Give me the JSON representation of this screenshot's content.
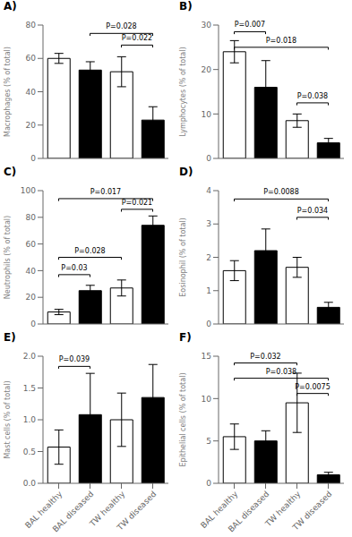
{
  "chart_data": [
    {
      "type": "bar",
      "title": "A)",
      "ylabel": "Macrophages (% of total)",
      "categories": [
        "BAL healthy",
        "BAL diseased",
        "TW healthy",
        "TW diseased"
      ],
      "values": [
        60,
        53,
        52,
        23
      ],
      "errors": [
        3,
        5,
        9,
        8
      ],
      "colors": [
        "white",
        "black",
        "white",
        "black"
      ],
      "ylim": [
        0,
        80
      ],
      "yticks": [
        0,
        20,
        40,
        60,
        80
      ],
      "grid": false,
      "tick_labels": "y",
      "annotations": [
        {
          "text": "P=0.028",
          "from": "BAL diseased",
          "to": "TW diseased",
          "y": 75
        },
        {
          "text": "P=0.022",
          "from": "TW healthy",
          "to": "TW diseased",
          "y": 68
        }
      ]
    },
    {
      "type": "bar",
      "title": "B)",
      "ylabel": "Lymphocytes (% of total)",
      "categories": [
        "BAL healthy",
        "BAL diseased",
        "TW healthy",
        "TW diseased"
      ],
      "values": [
        24,
        16,
        8.5,
        3.5
      ],
      "errors": [
        2.5,
        6,
        1.5,
        1.0
      ],
      "colors": [
        "white",
        "black",
        "white",
        "black"
      ],
      "ylim": [
        0,
        30
      ],
      "yticks": [
        0,
        10,
        20,
        30
      ],
      "grid": false,
      "tick_labels": "y",
      "annotations": [
        {
          "text": "P=0.007",
          "from": "BAL healthy",
          "to": "BAL diseased",
          "y": 28.5
        },
        {
          "text": "P=0.018",
          "from": "BAL healthy",
          "to": "TW diseased",
          "y": 25.0
        },
        {
          "text": "P=0.038",
          "from": "TW healthy",
          "to": "TW diseased",
          "y": 12.5
        }
      ]
    },
    {
      "type": "bar",
      "title": "C)",
      "ylabel": "Neutrophils (% of total)",
      "categories": [
        "BAL healthy",
        "BAL diseased",
        "TW healthy",
        "TW diseased"
      ],
      "values": [
        9,
        25,
        27,
        74
      ],
      "errors": [
        2,
        4,
        6,
        7
      ],
      "colors": [
        "white",
        "black",
        "white",
        "black"
      ],
      "ylim": [
        0,
        100
      ],
      "yticks": [
        0,
        20,
        40,
        60,
        80,
        100
      ],
      "grid": false,
      "tick_labels": "y",
      "annotations": [
        {
          "text": "P=0.03",
          "from": "BAL healthy",
          "to": "BAL diseased",
          "y": 37
        },
        {
          "text": "P=0.028",
          "from": "BAL healthy",
          "to": "TW healthy",
          "y": 50
        },
        {
          "text": "P=0.017",
          "from": "BAL healthy",
          "to": "TW diseased",
          "y": 94
        },
        {
          "text": "P=0.021",
          "from": "TW healthy",
          "to": "TW diseased",
          "y": 86
        }
      ]
    },
    {
      "type": "bar",
      "title": "D)",
      "ylabel": "Eosinophil (% of total)",
      "categories": [
        "BAL healthy",
        "BAL diseased",
        "TW healthy",
        "TW diseased"
      ],
      "values": [
        1.6,
        2.2,
        1.7,
        0.5
      ],
      "errors": [
        0.3,
        0.65,
        0.3,
        0.15
      ],
      "colors": [
        "white",
        "black",
        "white",
        "black"
      ],
      "ylim": [
        0,
        4
      ],
      "yticks": [
        0,
        1,
        2,
        3,
        4
      ],
      "grid": false,
      "tick_labels": "y",
      "annotations": [
        {
          "text": "P=0.0088",
          "from": "BAL healthy",
          "to": "TW diseased",
          "y": 3.75
        },
        {
          "text": "P=0.034",
          "from": "TW healthy",
          "to": "TW diseased",
          "y": 3.2
        }
      ]
    },
    {
      "type": "bar",
      "title": "E)",
      "ylabel": "Mast cells (% of total)",
      "categories": [
        "BAL healthy",
        "BAL diseased",
        "TW healthy",
        "TW diseased"
      ],
      "values": [
        0.57,
        1.08,
        1.0,
        1.35
      ],
      "errors": [
        0.27,
        0.65,
        0.42,
        0.52
      ],
      "colors": [
        "white",
        "black",
        "white",
        "black"
      ],
      "ylim": [
        0,
        2.0
      ],
      "yticks": [
        {
          "value": 0,
          "label": "0.0"
        },
        0.5,
        {
          "value": 1,
          "label": "1.0"
        },
        1.5,
        {
          "value": 2,
          "label": "2.0"
        }
      ],
      "grid": false,
      "annotations": [
        {
          "text": "P=0.039",
          "from": "BAL healthy",
          "to": "BAL diseased",
          "y": 1.84
        }
      ]
    },
    {
      "type": "bar",
      "title": "F)",
      "ylabel": "Epithelial cells (% of total)",
      "categories": [
        "BAL healthy",
        "BAL diseased",
        "TW healthy",
        "TW diseased"
      ],
      "values": [
        5.5,
        5.0,
        9.5,
        1.0
      ],
      "errors": [
        1.5,
        1.2,
        3.5,
        0.3
      ],
      "colors": [
        "white",
        "black",
        "white",
        "black"
      ],
      "ylim": [
        0,
        15
      ],
      "yticks": [
        0,
        5,
        10,
        15
      ],
      "grid": false,
      "annotations": [
        {
          "text": "P=0.032",
          "from": "BAL healthy",
          "to": "TW healthy",
          "y": 14.2
        },
        {
          "text": "P=0.038",
          "from": "BAL healthy",
          "to": "TW diseased",
          "y": 12.4
        },
        {
          "text": "P=0.0075",
          "from": "TW healthy",
          "to": "TW diseased",
          "y": 10.6
        }
      ]
    }
  ]
}
